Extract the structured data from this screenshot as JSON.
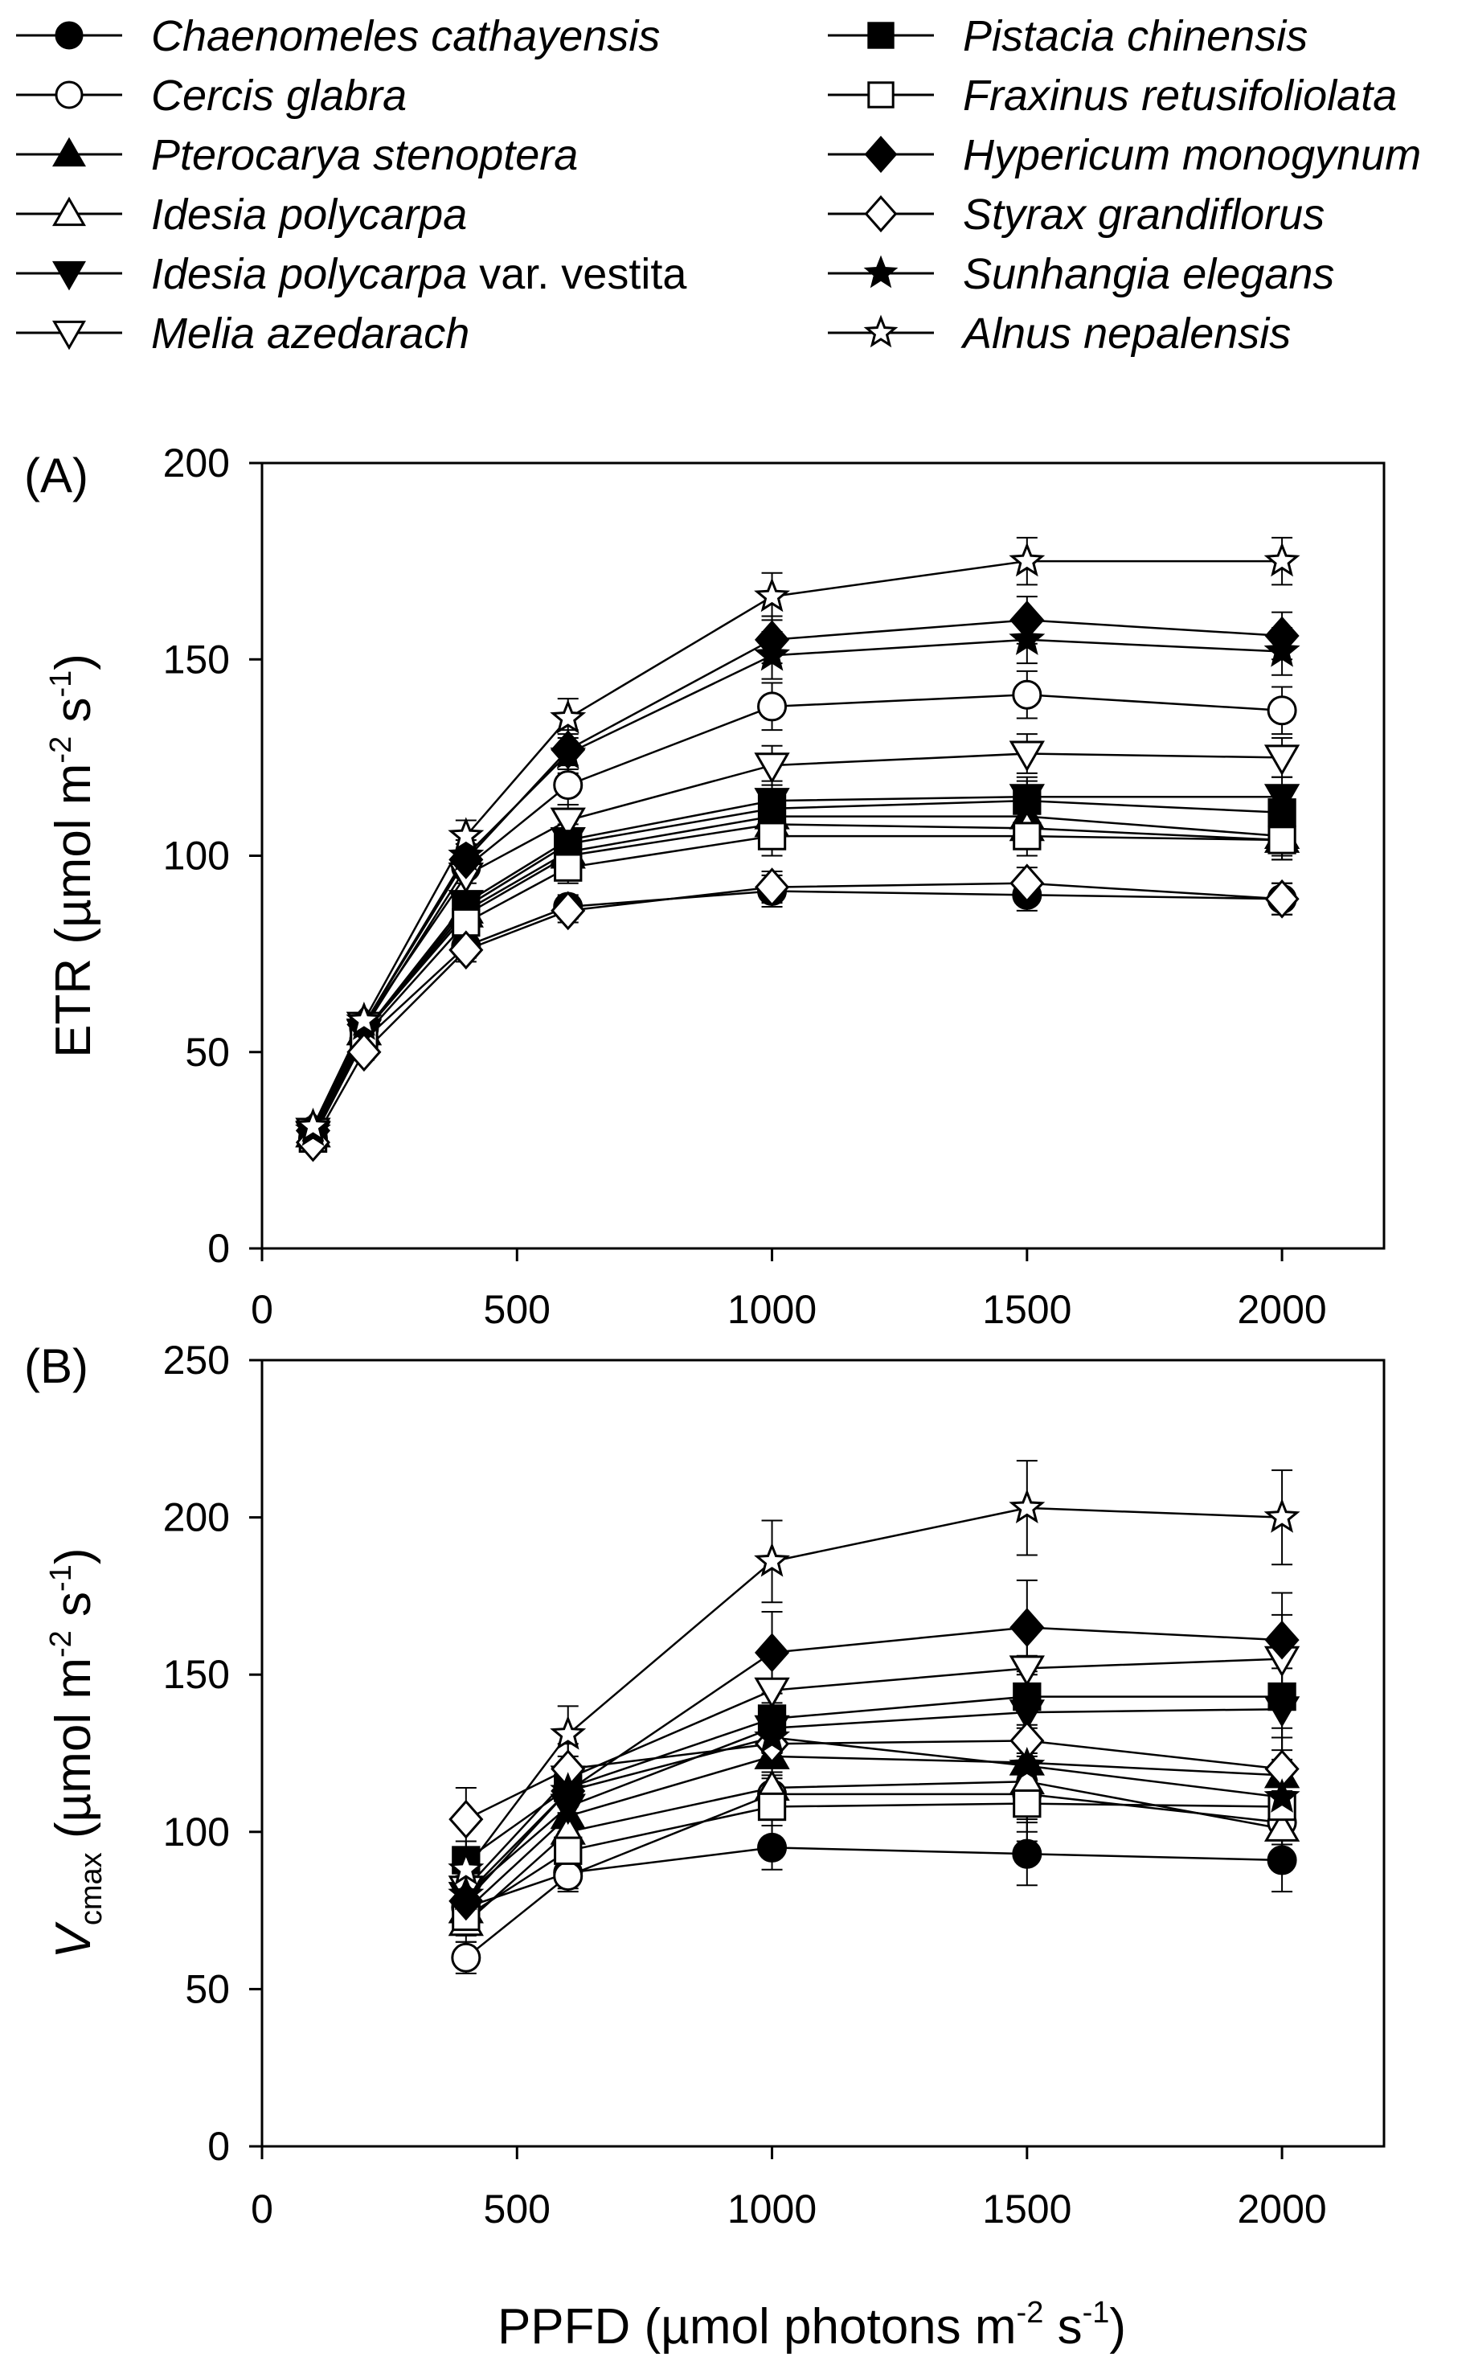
{
  "legend": {
    "items": [
      {
        "label": "Chaenomeles cathayensis",
        "marker": "circle",
        "fill": "filled",
        "italic": false
      },
      {
        "label": "Cercis glabra",
        "marker": "circle",
        "fill": "open",
        "italic": true
      },
      {
        "label": "Pterocarya stenoptera",
        "marker": "triangle-up",
        "fill": "filled",
        "italic": true
      },
      {
        "label": "Idesia polycarpa",
        "marker": "triangle-up",
        "fill": "open",
        "italic": true
      },
      {
        "label": "Idesia polycarpa",
        "suffix": " var. vestita",
        "marker": "triangle-down",
        "fill": "filled",
        "italic": true
      },
      {
        "label": "Melia azedarach",
        "marker": "triangle-down",
        "fill": "open",
        "italic": true
      },
      {
        "label": "Pistacia chinensis",
        "marker": "square",
        "fill": "filled",
        "italic": true
      },
      {
        "label": "Fraxinus retusifoliolata",
        "marker": "square",
        "fill": "open",
        "italic": true
      },
      {
        "label": "Hypericum monogynum",
        "marker": "diamond",
        "fill": "filled",
        "italic": true
      },
      {
        "label": "Styrax grandiflorus",
        "marker": "diamond",
        "fill": "open",
        "italic": true
      },
      {
        "label": "Sunhangia elegans",
        "marker": "star",
        "fill": "filled",
        "italic": true
      },
      {
        "label": "Alnus nepalensis",
        "marker": "star",
        "fill": "open",
        "italic": true
      }
    ]
  },
  "x_axis_title": {
    "main": "PPFD (µmol photons m",
    "sup1": "-2",
    "mid": " s",
    "sup2": "-1",
    "end": ")"
  },
  "chart_data": [
    {
      "type": "line",
      "panel_label": "(A)",
      "ylabel": {
        "main": "ETR (µmol m",
        "sup1": "-2",
        "mid": " s",
        "sup2": "-1",
        "end": ")"
      },
      "xlim": [
        0,
        2200
      ],
      "ylim": [
        0,
        200
      ],
      "x_ticks": [
        0,
        500,
        1000,
        1500,
        2000
      ],
      "y_ticks": [
        0,
        50,
        100,
        150,
        200
      ],
      "x": [
        100,
        200,
        400,
        600,
        1000,
        1500,
        2000
      ],
      "series": [
        {
          "name": "Chaenomeles cathayensis",
          "values": [
            28,
            53,
            77,
            87,
            91,
            90,
            89
          ],
          "err": [
            2,
            2,
            3,
            3,
            4,
            4,
            4
          ]
        },
        {
          "name": "Cercis glabra",
          "values": [
            30,
            56,
            97,
            118,
            138,
            141,
            137
          ],
          "err": [
            2,
            2,
            4,
            5,
            6,
            6,
            6
          ]
        },
        {
          "name": "Pterocarya stenoptera",
          "values": [
            29,
            55,
            86,
            101,
            110,
            110,
            105
          ],
          "err": [
            2,
            2,
            3,
            4,
            5,
            5,
            5
          ]
        },
        {
          "name": "Idesia polycarpa",
          "values": [
            29,
            55,
            85,
            100,
            108,
            107,
            104
          ],
          "err": [
            2,
            2,
            3,
            4,
            5,
            5,
            5
          ]
        },
        {
          "name": "Idesia polycarpa var. vestita",
          "values": [
            29,
            55,
            88,
            104,
            114,
            115,
            115
          ],
          "err": [
            2,
            2,
            3,
            4,
            5,
            5,
            5
          ]
        },
        {
          "name": "Melia azedarach",
          "values": [
            30,
            57,
            95,
            109,
            123,
            126,
            125
          ],
          "err": [
            2,
            2,
            4,
            4,
            5,
            5,
            5
          ]
        },
        {
          "name": "Pistacia chinensis",
          "values": [
            28,
            55,
            87,
            103,
            112,
            114,
            111
          ],
          "err": [
            2,
            2,
            3,
            4,
            5,
            5,
            5
          ]
        },
        {
          "name": "Fraxinus retusifoliolata",
          "values": [
            28,
            54,
            83,
            97,
            105,
            105,
            104
          ],
          "err": [
            2,
            2,
            3,
            4,
            5,
            5,
            5
          ]
        },
        {
          "name": "Hypericum monogynum",
          "values": [
            30,
            57,
            99,
            127,
            155,
            160,
            156
          ],
          "err": [
            2,
            2,
            4,
            5,
            6,
            6,
            6
          ]
        },
        {
          "name": "Styrax grandiflorus",
          "values": [
            27,
            50,
            76,
            86,
            92,
            93,
            89
          ],
          "err": [
            2,
            2,
            3,
            3,
            4,
            4,
            4
          ]
        },
        {
          "name": "Sunhangia elegans",
          "values": [
            30,
            57,
            100,
            126,
            151,
            155,
            152
          ],
          "err": [
            2,
            2,
            4,
            5,
            6,
            6,
            6
          ]
        },
        {
          "name": "Alnus nepalensis",
          "values": [
            31,
            58,
            105,
            135,
            166,
            175,
            175
          ],
          "err": [
            2,
            2,
            4,
            5,
            6,
            6,
            6
          ]
        }
      ]
    },
    {
      "type": "line",
      "panel_label": "(B)",
      "ylabel": {
        "main": "V",
        "sub": "cmax",
        "mid": " (µmol m",
        "sup1": "-2",
        "mid2": " s",
        "sup2": "-1",
        "end": ")"
      },
      "xlim": [
        0,
        2200
      ],
      "ylim": [
        0,
        250
      ],
      "x_ticks": [
        0,
        500,
        1000,
        1500,
        2000
      ],
      "y_ticks": [
        0,
        50,
        100,
        150,
        200,
        250
      ],
      "x": [
        400,
        600,
        1000,
        1500,
        2000
      ],
      "series": [
        {
          "name": "Chaenomeles cathayensis",
          "values": [
            76,
            87,
            95,
            93,
            91
          ],
          "err": [
            6,
            5,
            7,
            10,
            10
          ]
        },
        {
          "name": "Cercis glabra",
          "values": [
            60,
            86,
            112,
            112,
            103
          ],
          "err": [
            5,
            5,
            10,
            12,
            12
          ]
        },
        {
          "name": "Pterocarya stenoptera",
          "values": [
            75,
            105,
            124,
            122,
            118
          ],
          "err": [
            6,
            6,
            10,
            12,
            12
          ]
        },
        {
          "name": "Idesia polycarpa",
          "values": [
            71,
            100,
            114,
            116,
            101
          ],
          "err": [
            6,
            6,
            10,
            12,
            12
          ]
        },
        {
          "name": "Idesia polycarpa var. vestita",
          "values": [
            80,
            108,
            133,
            138,
            139
          ],
          "err": [
            6,
            6,
            11,
            13,
            13
          ]
        },
        {
          "name": "Melia azedarach",
          "values": [
            82,
            117,
            145,
            152,
            155
          ],
          "err": [
            6,
            7,
            12,
            14,
            14
          ]
        },
        {
          "name": "Pistacia chinensis",
          "values": [
            91,
            114,
            136,
            143,
            143
          ],
          "err": [
            6,
            6,
            11,
            13,
            13
          ]
        },
        {
          "name": "Fraxinus retusifoliolata",
          "values": [
            73,
            94,
            108,
            109,
            108
          ],
          "err": [
            6,
            6,
            10,
            12,
            12
          ]
        },
        {
          "name": "Hypericum monogynum",
          "values": [
            78,
            113,
            157,
            165,
            161
          ],
          "err": [
            6,
            7,
            13,
            15,
            15
          ]
        },
        {
          "name": "Styrax grandiflorus",
          "values": [
            104,
            120,
            128,
            129,
            120
          ],
          "err": [
            10,
            8,
            11,
            13,
            13
          ]
        },
        {
          "name": "Sunhangia elegans",
          "values": [
            80,
            113,
            130,
            121,
            111
          ],
          "err": [
            6,
            7,
            11,
            12,
            12
          ]
        },
        {
          "name": "Alnus nepalensis",
          "values": [
            88,
            131,
            186,
            203,
            200
          ],
          "err": [
            7,
            9,
            13,
            15,
            15
          ]
        }
      ]
    }
  ]
}
